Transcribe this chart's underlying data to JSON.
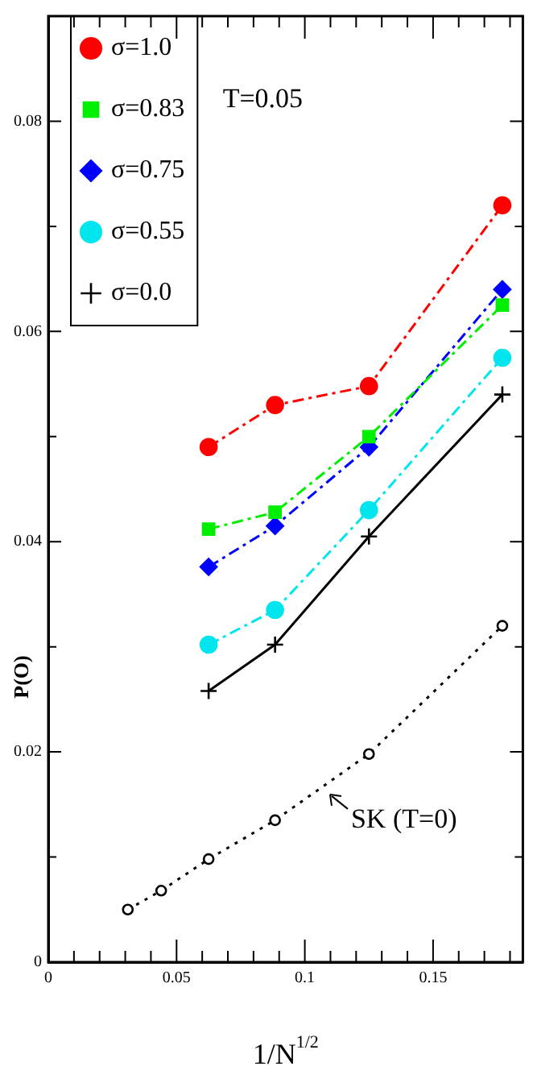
{
  "chart_data": {
    "type": "line",
    "xlabel": "1/N$^{1/2}$",
    "ylabel": "P(O)",
    "xlim": [
      0,
      0.185
    ],
    "ylim": [
      0,
      0.09
    ],
    "xticks": [
      0,
      {
        "value": 0.01,
        "label": null
      },
      {
        "value": 0.02,
        "label": null
      },
      {
        "value": 0.03,
        "label": null
      },
      {
        "value": 0.04,
        "label": null
      },
      0.05,
      {
        "value": 0.06,
        "label": null
      },
      {
        "value": 0.07,
        "label": null
      },
      {
        "value": 0.08,
        "label": null
      },
      {
        "value": 0.09,
        "label": null
      },
      0.1,
      {
        "value": 0.11,
        "label": null
      },
      {
        "value": 0.12,
        "label": null
      },
      {
        "value": 0.13,
        "label": null
      },
      {
        "value": 0.14,
        "label": null
      },
      0.15,
      {
        "value": 0.16,
        "label": null
      },
      {
        "value": 0.17,
        "label": null
      },
      {
        "value": 0.18,
        "label": null
      }
    ],
    "yticks": [
      0,
      {
        "value": 0.01,
        "label": null
      },
      0.02,
      {
        "value": 0.03,
        "label": null
      },
      0.04,
      {
        "value": 0.05,
        "label": null
      },
      0.06,
      {
        "value": 0.07,
        "label": null
      },
      0.08
    ],
    "grid": false,
    "legend": "top left",
    "annotations": [
      "T=0.05",
      "SK (T=0)"
    ],
    "series": [
      {
        "name": "σ=1.0",
        "color": "#ff0000",
        "marker": "circle",
        "line_style": "dashed",
        "x": [
          0.0625,
          0.0884,
          0.125,
          0.177
        ],
        "values": [
          0.049,
          0.053,
          0.0548,
          0.072
        ]
      },
      {
        "name": "σ=0.83",
        "color": "#00ee00",
        "marker": "square",
        "line_style": "dashed",
        "x": [
          0.0625,
          0.0884,
          0.125,
          0.177
        ],
        "values": [
          0.0412,
          0.0428,
          0.05,
          0.0625
        ]
      },
      {
        "name": "σ=0.75",
        "color": "#0000ff",
        "marker": "diamond",
        "line_style": "dashed",
        "x": [
          0.0625,
          0.0884,
          0.125,
          0.177
        ],
        "values": [
          0.0376,
          0.0415,
          0.049,
          0.064
        ]
      },
      {
        "name": "σ=0.55",
        "color": "#00e5ee",
        "marker": "circle",
        "line_style": "dashed",
        "x": [
          0.0625,
          0.0884,
          0.125,
          0.177
        ],
        "values": [
          0.0302,
          0.0335,
          0.043,
          0.0575
        ]
      },
      {
        "name": "σ=0.0",
        "color": "#000000",
        "marker": "cross",
        "line_style": "solid",
        "x": [
          0.0625,
          0.0884,
          0.125,
          0.177
        ],
        "values": [
          0.0258,
          0.0302,
          0.0405,
          0.054
        ]
      },
      {
        "color": "#000000",
        "marker": "circle",
        "line_style": "dotted",
        "x": [
          0.031,
          0.044,
          0.0625,
          0.0884,
          0.125,
          0.177
        ],
        "values": [
          0.005,
          0.0068,
          0.0098,
          0.0135,
          0.0198,
          0.032
        ]
      }
    ]
  }
}
